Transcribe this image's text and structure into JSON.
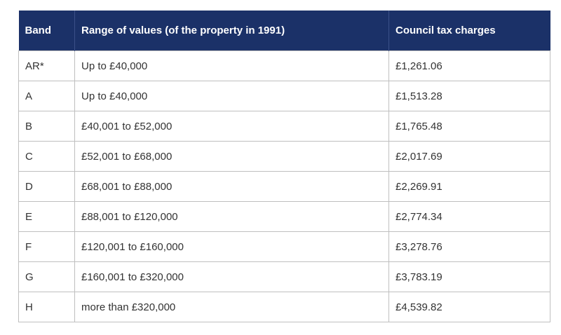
{
  "table": {
    "headers": [
      "Band",
      "Range of values (of the property in 1991)",
      "Council tax charges"
    ],
    "rows": [
      {
        "band": "AR*",
        "range": "Up to £40,000",
        "charge": "£1,261.06"
      },
      {
        "band": "A",
        "range": "Up to £40,000",
        "charge": "£1,513.28"
      },
      {
        "band": "B",
        "range": "£40,001 to £52,000",
        "charge": "£1,765.48"
      },
      {
        "band": "C",
        "range": "£52,001 to £68,000",
        "charge": "£2,017.69"
      },
      {
        "band": "D",
        "range": "£68,001 to £88,000",
        "charge": "£2,269.91"
      },
      {
        "band": "E",
        "range": "£88,001 to £120,000",
        "charge": "£2,774.34"
      },
      {
        "band": "F",
        "range": "£120,001 to £160,000",
        "charge": "£3,278.76"
      },
      {
        "band": "G",
        "range": "£160,001 to £320,000",
        "charge": "£3,783.19"
      },
      {
        "band": "H",
        "range": "more than £320,000",
        "charge": "£4,539.82"
      }
    ]
  },
  "colors": {
    "header_bg": "#1b3168",
    "header_text": "#ffffff",
    "border": "#bfbfbf"
  }
}
